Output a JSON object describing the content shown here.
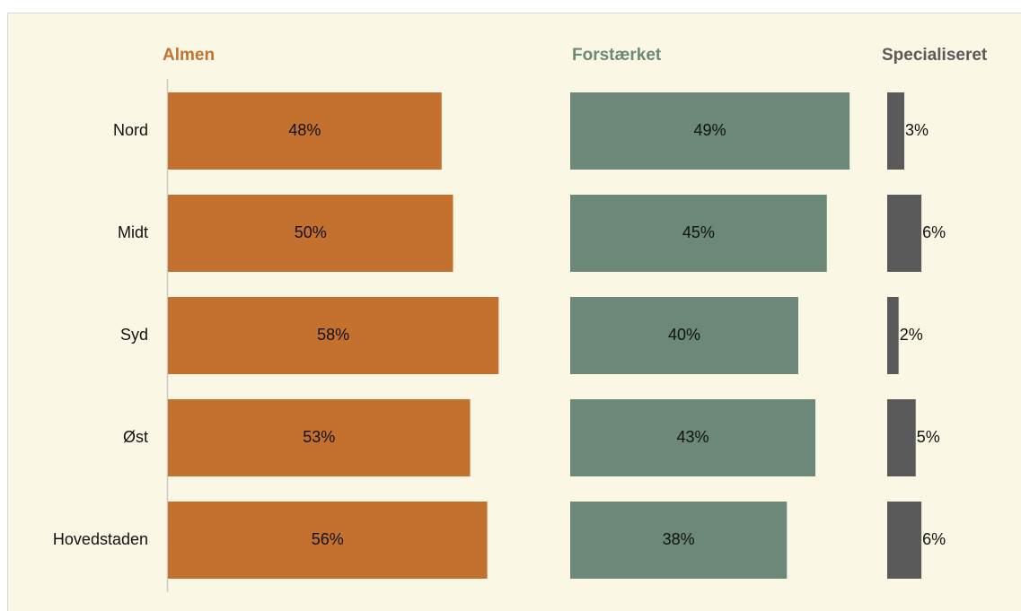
{
  "chart_data": {
    "type": "bar",
    "orientation": "horizontal",
    "categories": [
      "Nord",
      "Midt",
      "Syd",
      "Øst",
      "Hovedstaden"
    ],
    "series": [
      {
        "name": "Almen",
        "color": "#c47130",
        "values": [
          48,
          50,
          58,
          53,
          56
        ],
        "value_labels": [
          "48%",
          "50%",
          "58%",
          "53%",
          "56%"
        ]
      },
      {
        "name": "Forstærket",
        "color": "#6b8878",
        "values": [
          49,
          45,
          40,
          43,
          38
        ],
        "value_labels": [
          "49%",
          "45%",
          "40%",
          "43%",
          "38%"
        ]
      },
      {
        "name": "Specialiseret",
        "color": "#5a5a5a",
        "values": [
          3,
          6,
          2,
          5,
          6
        ],
        "value_labels": [
          "3%",
          "6%",
          "2%",
          "5%",
          "6%"
        ]
      }
    ]
  }
}
